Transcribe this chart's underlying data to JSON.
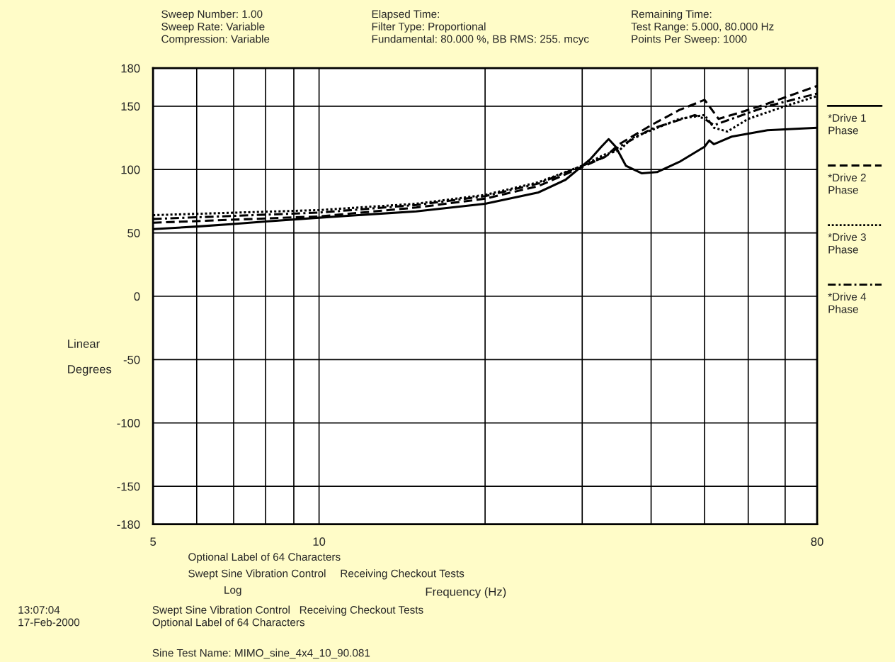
{
  "chart_data": {
    "type": "line",
    "annotations": [
      "Sweep Number: 1.00\nSweep Rate: Variable\nCompression: Variable",
      "Elapsed Time:\nFilter Type: Proportional\nFundamental: 80.000 %, BB RMS: 255. mcyc",
      "Remaining Time:\nTest Range: 5.000, 80.000 Hz\nPoints Per Sweep: 1000",
      "Optional Label of 64 Characters",
      "Swept Sine Vibration Control",
      "Receiving Checkout Tests",
      "Log",
      "13:07:04\n17-Feb-2000",
      "Swept Sine Vibration Control   Receiving Checkout Tests\nOptional Label of 64 Characters",
      "Sine Test Name: MIMO_sine_4x4_10_90.081"
    ],
    "xlabel": "Frequency (Hz)",
    "ylabel": "Linear\n\nDegrees",
    "log": "x",
    "xlim": [
      5,
      80
    ],
    "xticks": [
      5,
      {
        "value": 6,
        "label": null
      },
      {
        "value": 7,
        "label": null
      },
      {
        "value": 8,
        "label": null
      },
      {
        "value": 9,
        "label": null
      },
      10,
      {
        "value": 20,
        "label": null
      },
      {
        "value": 30,
        "label": null
      },
      {
        "value": 40,
        "label": null
      },
      {
        "value": 50,
        "label": null
      },
      {
        "value": 60,
        "label": null
      },
      {
        "value": 70,
        "label": null
      },
      80
    ],
    "ylim": [
      -180,
      180
    ],
    "yticks": [
      -180,
      -150,
      -100,
      -50,
      0,
      50,
      100,
      150,
      180
    ],
    "grid": true,
    "legend": "right",
    "series": [
      {
        "name": "*Drive 1\nPhase",
        "color": "#000000",
        "line_style": "solid",
        "x": [
          5,
          6,
          7,
          8,
          10,
          15,
          20,
          25,
          28,
          31,
          32.5,
          33.5,
          34.5,
          36,
          38.5,
          41,
          45,
          50,
          51,
          52,
          56,
          65,
          80
        ],
        "values": [
          53,
          55,
          57,
          59,
          62,
          67,
          73,
          82,
          92,
          108,
          118,
          124,
          118,
          103,
          97,
          98,
          106,
          118,
          123,
          120,
          126,
          131,
          133
        ]
      },
      {
        "name": "*Drive 2\nPhase",
        "color": "#000000",
        "line_style": "dashed",
        "x": [
          5,
          10,
          15,
          20,
          25,
          30,
          33,
          35,
          40,
          45,
          50,
          51,
          53,
          58,
          65,
          80
        ],
        "values": [
          58,
          63,
          70,
          77,
          87,
          102,
          110,
          120,
          135,
          147,
          155,
          150,
          140,
          145,
          152,
          166
        ]
      },
      {
        "name": "*Drive 3\nPhase",
        "color": "#000000",
        "line_style": "dotted",
        "x": [
          5,
          10,
          15,
          20,
          25,
          30,
          33,
          35,
          37,
          45,
          50,
          52,
          55,
          60,
          70,
          80
        ],
        "values": [
          64,
          68,
          73,
          80,
          90,
          103,
          112,
          115,
          125,
          140,
          143,
          133,
          130,
          140,
          150,
          158
        ]
      },
      {
        "name": "*Drive 4\nPhase",
        "color": "#000000",
        "line_style": "dashdot",
        "x": [
          5,
          10,
          15,
          20,
          25,
          30,
          33,
          35,
          40,
          48,
          50,
          52,
          56,
          65,
          80
        ],
        "values": [
          61,
          66,
          72,
          79,
          89,
          103,
          110,
          118,
          132,
          143,
          140,
          135,
          140,
          150,
          160
        ]
      }
    ]
  }
}
